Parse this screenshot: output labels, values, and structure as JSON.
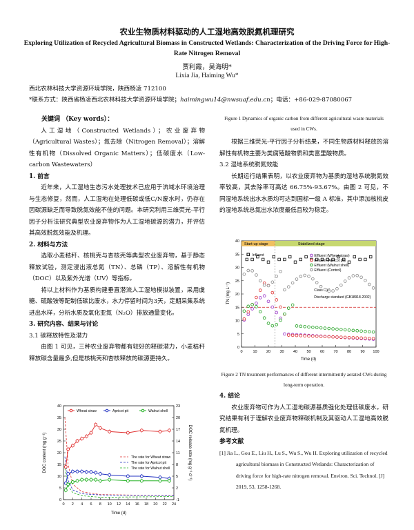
{
  "title_cn": "农业生物质材料驱动的人工湿地高效脱氮机理研究",
  "title_en": "Exploring Utilization of Recycled Agricultural Biomass in Constructed Wetlands: Characterization of the Driving Force for High-Rate Nitrogen Removal",
  "authors_cn": "贾利霞，吴海明*",
  "authors_en": "Lixia Jia, Haiming Wu*",
  "affiliation": "西北农林科技大学资源环境学院，陕西杨凌 712100",
  "contact_prefix": "*联系方式：陕西省杨凌西北农林科技大学资源环境学院；",
  "contact_email": "haimingwu14@nwsuaf.edu.cn",
  "contact_suffix": "；电话：+86-029-87080067",
  "keywords_label": "关键词 （Key words）：",
  "keywords_text": "人工湿地（Constructed Wetlands）；农业废弃物（Agricultural Wastes）；氮去除（Nitrogen Removal）；溶解性有机物（Dissolved Organic Matters）；低碳废水（Low-carbon Wastewaters）",
  "sec1_title": "1. 前言",
  "sec1_text": "近年来，人工湿地生态污水处理技术已应用于流域水环境治理与生态修复，然而，人工湿地在处理低碳或低C/N废水时，仍存在因碳源缺乏而导致脱氮效能不佳的问题。本研究利用三维荧光-平行因子分析法研究典型农业废弃物作为人工湿地碳源的潜力，并评估其高效脱氮效能及机理。",
  "sec2_title": "2. 材料与方法",
  "sec2_p1": "选取小麦秸秆、核桃壳与杏核壳等典型农业废弃物，基于静态释放试验，测定浸出液总氮（TN）、总磷（TP）、溶解性有机物（DOC）以及紫外光谱（UV）等指标。",
  "sec2_p2": "将以上材料作为基质构建垂直潜流人工湿地模拟装置，采用虞糖、硫酸铵等配制低碳比废水，水力停留时间为3天，定期采集系统进出水样，分析水质及氧化亚氮（N₂O）排放通量变化。",
  "sec3_title": "3. 研究内容、结果与讨论",
  "sec31_title": "3.1 碳释放特性及潜力",
  "sec31_text": "由图 1 可见，三种农业废弃物都有较好的释碳潜力，小麦秸秆释放碳含量最多,但是核桃壳和杏核释放的碳源更持久。",
  "fig1_caption": "Figure 1 Dynamics of organic carbon from different agricultural waste materials used in CWs.",
  "sec31_text2": "根据三维荧光-平行因子分析结果，不同生物质材料释放的溶解性有机物主要为类腐殖酸物质和类富里酸物质。",
  "sec32_title": "3.2 湿地系统脱氮效能",
  "sec32_text": "长期运行结果表明，以农业废弃物为基质的湿地系统脱氮效率较高，其去除率可高达 66.75%-93.67%。由图 2 可见，不同湿地系统出水水质均可达到国标一级 A 标准，其中添加核桃皮的湿地系统总氮出水浓度最低且较为稳定。",
  "fig2_caption": "Figure 2 TN treatment performances of different intermittently aerated CWs during long-term operation.",
  "sec4_title": "4. 结论",
  "sec4_text": "农业废弃物可作为人工湿地碳源基质强化处理低碳废水。研究结果有利于理解农业废弃物释碳机制及其驱动人工湿地高效脱氮机理。",
  "refs_title": "参考文献",
  "ref1": "[1] Jia L., Gou E., Liu H., Lu S., Wu S., Wu H. Exploring utilization of recycled agricultural biomass in Constructed Wetlands: Characterization of driving force for high-rate nitrogen removal. Environ. Sci. Technol. [J] 2019, 53, 1258-1268.",
  "chart_data": [
    {
      "type": "line",
      "xlabel": "Time (d)",
      "ylabel": "DOC content (mg g⁻¹)",
      "y2label": "DOC release rate (mg g⁻¹ d⁻¹)",
      "xlim": [
        0,
        24
      ],
      "ylim": [
        0,
        40
      ],
      "y2lim": [
        -1,
        23
      ],
      "xticks": [
        0,
        2,
        4,
        6,
        8,
        10,
        12,
        14,
        16,
        18,
        20,
        22,
        24
      ],
      "yticks": [
        0,
        5,
        10,
        15,
        20,
        25,
        30,
        35,
        40
      ],
      "y2ticks": [
        -1,
        2,
        5,
        8,
        11,
        14,
        17,
        20,
        23
      ],
      "series": [
        {
          "name": "Wheat straw",
          "color": "#e03030",
          "x": [
            0.5,
            1,
            2,
            3,
            4,
            5,
            6,
            7,
            8,
            10,
            14,
            17,
            21,
            23
          ],
          "y": [
            14,
            21.5,
            23,
            25,
            26,
            27,
            28.5,
            32,
            30.5,
            29,
            28.5,
            29.5,
            29,
            29.5
          ]
        },
        {
          "name": "Apricot pit",
          "color": "#2030c0",
          "x": [
            0.5,
            1,
            2,
            3,
            4,
            5,
            6,
            7,
            8,
            10,
            14,
            17,
            21,
            23
          ],
          "y": [
            7,
            11,
            12,
            12,
            12,
            11.8,
            11.8,
            11.5,
            11,
            10.5,
            10,
            10,
            9.5,
            9
          ]
        },
        {
          "name": "Walnut shell",
          "color": "#20b020",
          "x": [
            0.5,
            1,
            2,
            3,
            4,
            5,
            6,
            7,
            8,
            10,
            14,
            17,
            21,
            23
          ],
          "y": [
            4,
            6.5,
            7.5,
            8,
            8.5,
            8.5,
            8.5,
            8.5,
            8,
            8.5,
            8,
            8,
            8,
            8
          ]
        }
      ],
      "rate_series": [
        {
          "name": "The rate for Wheat straw",
          "color": "#e03030"
        },
        {
          "name": "The rate for Apricot pit",
          "color": "#2030c0"
        },
        {
          "name": "The rate for Walnut shell",
          "color": "#20b020"
        }
      ],
      "legend": "top-right"
    },
    {
      "type": "scatter",
      "xlabel": "Time (d)",
      "ylabel": "TN (mg L⁻¹)",
      "xlim": [
        0,
        100
      ],
      "ylim": [
        0,
        40
      ],
      "xticks": [
        0,
        10,
        20,
        30,
        40,
        50,
        60,
        70,
        80,
        90,
        100
      ],
      "yticks": [
        0,
        5,
        10,
        15,
        20,
        25,
        30,
        35,
        40
      ],
      "stages": [
        "Start-up stage",
        "Stabilized stage"
      ],
      "series": [
        {
          "name": "Influent",
          "marker": "square",
          "color": "#111"
        },
        {
          "name": "Effluent (Wheat straw)",
          "color": "#9a35c8"
        },
        {
          "name": "Effluent (Apricot pit)",
          "color": "#e03030"
        },
        {
          "name": "Effluent (Walnut shell)",
          "color": "#20a020"
        },
        {
          "name": "Effluent (Control)",
          "color": "#888"
        }
      ],
      "annotations": [
        "Class I (A)",
        "Discharge standard (GB18918-2002)"
      ]
    }
  ]
}
